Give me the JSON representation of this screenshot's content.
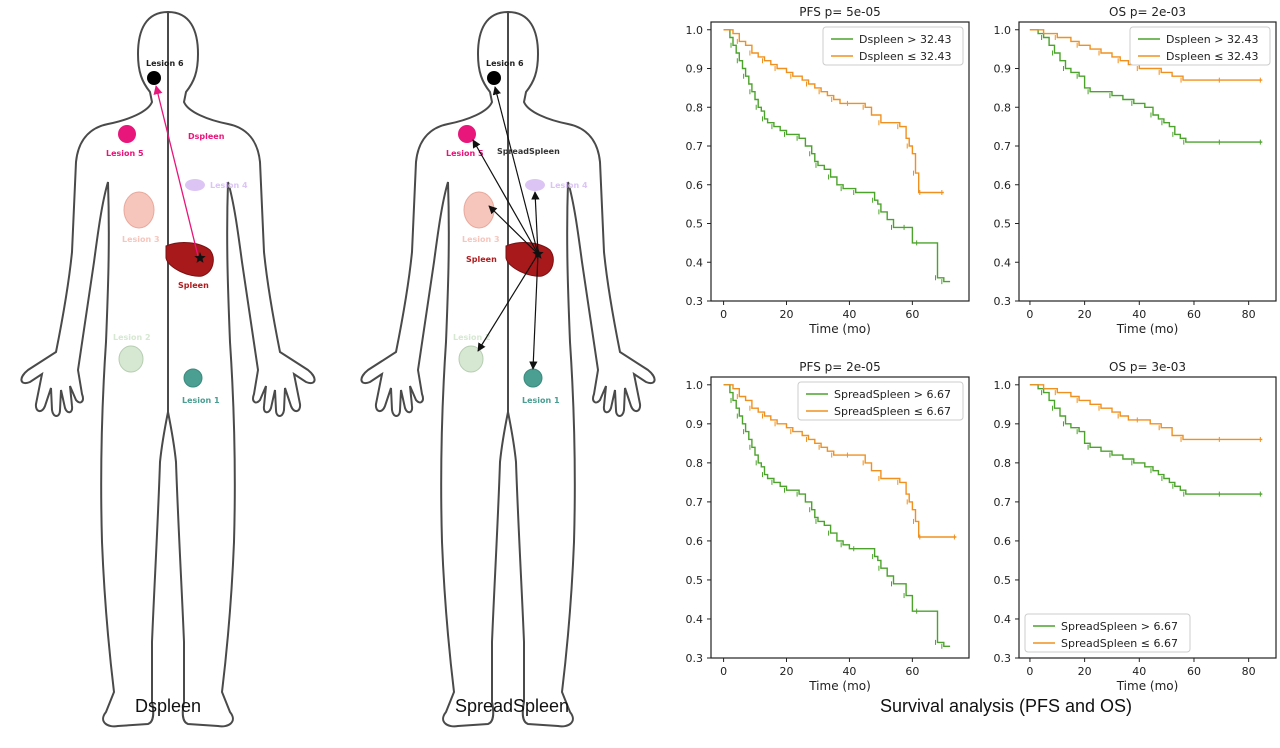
{
  "body_diagrams": [
    {
      "caption": "Dspleen",
      "spleen_label": "Spleen",
      "metric_label": "Dspleen",
      "lesions": [
        {
          "label": "Lesion 6",
          "color": "#000000"
        },
        {
          "label": "Lesion 5",
          "color": "#e8157a"
        },
        {
          "label": "Lesion 4",
          "color": "#dcc4f4"
        },
        {
          "label": "Lesion 3",
          "color": "#f6c6bd"
        },
        {
          "label": "Lesion 2",
          "color": "#d6e8d2"
        },
        {
          "label": "Lesion 1",
          "color": "#4a9e92"
        }
      ]
    },
    {
      "caption": "SpreadSpleen",
      "spleen_label": "Spleen",
      "metric_label": "SpreadSpleen",
      "lesions": [
        {
          "label": "Lesion 6",
          "color": "#000000"
        },
        {
          "label": "Lesion 5",
          "color": "#e8157a"
        },
        {
          "label": "Lesion 4",
          "color": "#dcc4f4"
        },
        {
          "label": "Lesion 3",
          "color": "#f6c6bd"
        },
        {
          "label": "Lesion 2",
          "color": "#d6e8d2"
        },
        {
          "label": "Lesion 1",
          "color": "#4a9e92"
        }
      ]
    }
  ],
  "survival_caption": "Survival analysis (PFS and OS)",
  "colors": {
    "high": "#4ca32c",
    "low": "#f0901e",
    "spleen": "#a8191b",
    "outline": "#4a4a4a"
  },
  "chart_data": [
    {
      "type": "line",
      "title": "PFS p= 5e-05",
      "xlabel": "Time (mo)",
      "ylabel": "",
      "xlim": [
        -4,
        78
      ],
      "ylim": [
        0.3,
        1.02
      ],
      "xticks": [
        0,
        20,
        40,
        60
      ],
      "yticks": [
        0.3,
        0.4,
        0.5,
        0.6,
        0.7,
        0.8,
        0.9,
        1.0
      ],
      "legend_position": "top-right",
      "series": [
        {
          "name": "Dspleen >  32.43",
          "color": "#4ca32c",
          "x": [
            0,
            2,
            3,
            4,
            5,
            6,
            7,
            8,
            9,
            10,
            11,
            12,
            13,
            14,
            16,
            18,
            20,
            23,
            24,
            26,
            28,
            29,
            30,
            32,
            34,
            36,
            38,
            40,
            42,
            45,
            48,
            49,
            50,
            52,
            54,
            56,
            58,
            60,
            62,
            64,
            68,
            69,
            70,
            72
          ],
          "y": [
            1.0,
            0.98,
            0.96,
            0.94,
            0.92,
            0.9,
            0.88,
            0.86,
            0.84,
            0.82,
            0.8,
            0.79,
            0.77,
            0.76,
            0.75,
            0.74,
            0.73,
            0.73,
            0.72,
            0.7,
            0.68,
            0.66,
            0.65,
            0.64,
            0.62,
            0.6,
            0.59,
            0.59,
            0.58,
            0.58,
            0.56,
            0.55,
            0.53,
            0.51,
            0.49,
            0.49,
            0.49,
            0.45,
            0.45,
            0.45,
            0.36,
            0.36,
            0.35,
            0.35
          ]
        },
        {
          "name": "Dspleen  ≤  32.43",
          "color": "#f0901e",
          "x": [
            0,
            3,
            5,
            7,
            9,
            11,
            13,
            15,
            17,
            20,
            22,
            25,
            27,
            29,
            31,
            33,
            35,
            37,
            40,
            42,
            45,
            47,
            50,
            53,
            56,
            58,
            59,
            60,
            61,
            62,
            63,
            65,
            70
          ],
          "y": [
            1.0,
            0.99,
            0.97,
            0.96,
            0.94,
            0.93,
            0.92,
            0.91,
            0.9,
            0.89,
            0.88,
            0.87,
            0.86,
            0.85,
            0.84,
            0.83,
            0.82,
            0.81,
            0.81,
            0.81,
            0.8,
            0.78,
            0.76,
            0.76,
            0.75,
            0.72,
            0.7,
            0.68,
            0.63,
            0.58,
            0.58,
            0.58,
            0.58
          ]
        }
      ]
    },
    {
      "type": "line",
      "title": "OS p= 2e-03",
      "xlabel": "Time (mo)",
      "ylabel": "",
      "xlim": [
        -4,
        90
      ],
      "ylim": [
        0.3,
        1.02
      ],
      "xticks": [
        0,
        20,
        40,
        60,
        80
      ],
      "yticks": [
        0.3,
        0.4,
        0.5,
        0.6,
        0.7,
        0.8,
        0.9,
        1.0
      ],
      "legend_position": "top-right",
      "series": [
        {
          "name": "Dspleen >  32.43",
          "color": "#4ca32c",
          "x": [
            0,
            3,
            5,
            7,
            9,
            11,
            13,
            15,
            18,
            20,
            22,
            26,
            30,
            34,
            38,
            42,
            45,
            47,
            49,
            51,
            53,
            55,
            57,
            60,
            70,
            80,
            85
          ],
          "y": [
            1.0,
            0.99,
            0.98,
            0.96,
            0.94,
            0.92,
            0.9,
            0.89,
            0.88,
            0.85,
            0.84,
            0.84,
            0.83,
            0.82,
            0.81,
            0.8,
            0.78,
            0.77,
            0.76,
            0.75,
            0.73,
            0.72,
            0.71,
            0.71,
            0.71,
            0.71,
            0.71
          ]
        },
        {
          "name": "Dspleen  ≤  32.43",
          "color": "#f0901e",
          "x": [
            0,
            5,
            10,
            15,
            18,
            22,
            26,
            30,
            33,
            36,
            40,
            44,
            48,
            52,
            56,
            60,
            70,
            80,
            85
          ],
          "y": [
            1.0,
            0.99,
            0.98,
            0.97,
            0.96,
            0.95,
            0.94,
            0.93,
            0.92,
            0.91,
            0.9,
            0.9,
            0.89,
            0.88,
            0.87,
            0.87,
            0.87,
            0.87,
            0.87
          ]
        }
      ]
    },
    {
      "type": "line",
      "title": "PFS p= 2e-05",
      "xlabel": "Time (mo)",
      "ylabel": "",
      "xlim": [
        -4,
        78
      ],
      "ylim": [
        0.3,
        1.02
      ],
      "xticks": [
        0,
        20,
        40,
        60
      ],
      "yticks": [
        0.3,
        0.4,
        0.5,
        0.6,
        0.7,
        0.8,
        0.9,
        1.0
      ],
      "legend_position": "top-right",
      "series": [
        {
          "name": "SpreadSpleen >  6.67",
          "color": "#4ca32c",
          "x": [
            0,
            2,
            3,
            4,
            5,
            6,
            7,
            8,
            9,
            10,
            11,
            12,
            13,
            14,
            16,
            18,
            20,
            23,
            24,
            26,
            28,
            29,
            30,
            32,
            34,
            36,
            38,
            40,
            42,
            45,
            48,
            49,
            50,
            52,
            54,
            56,
            58,
            60,
            62,
            64,
            68,
            69,
            70,
            72
          ],
          "y": [
            1.0,
            0.98,
            0.96,
            0.94,
            0.92,
            0.9,
            0.88,
            0.86,
            0.84,
            0.82,
            0.8,
            0.79,
            0.77,
            0.76,
            0.75,
            0.74,
            0.73,
            0.73,
            0.72,
            0.7,
            0.68,
            0.66,
            0.65,
            0.64,
            0.62,
            0.6,
            0.59,
            0.58,
            0.58,
            0.58,
            0.56,
            0.55,
            0.53,
            0.51,
            0.49,
            0.49,
            0.46,
            0.42,
            0.42,
            0.42,
            0.34,
            0.34,
            0.33,
            0.33
          ]
        },
        {
          "name": "SpreadSpleen  ≤  6.67",
          "color": "#f0901e",
          "x": [
            0,
            3,
            5,
            7,
            9,
            11,
            13,
            15,
            17,
            20,
            22,
            25,
            27,
            29,
            31,
            33,
            35,
            37,
            40,
            42,
            45,
            47,
            50,
            53,
            56,
            58,
            59,
            60,
            61,
            62,
            63,
            65,
            74
          ],
          "y": [
            1.0,
            0.99,
            0.97,
            0.96,
            0.94,
            0.93,
            0.92,
            0.91,
            0.9,
            0.89,
            0.88,
            0.87,
            0.86,
            0.85,
            0.84,
            0.83,
            0.82,
            0.82,
            0.82,
            0.82,
            0.8,
            0.78,
            0.76,
            0.76,
            0.75,
            0.72,
            0.7,
            0.68,
            0.65,
            0.61,
            0.61,
            0.61,
            0.61
          ]
        }
      ]
    },
    {
      "type": "line",
      "title": "OS p= 3e-03",
      "xlabel": "Time (mo)",
      "ylabel": "",
      "xlim": [
        -4,
        90
      ],
      "ylim": [
        0.3,
        1.02
      ],
      "xticks": [
        0,
        20,
        40,
        60,
        80
      ],
      "yticks": [
        0.3,
        0.4,
        0.5,
        0.6,
        0.7,
        0.8,
        0.9,
        1.0
      ],
      "legend_position": "bottom-left",
      "series": [
        {
          "name": "SpreadSpleen >  6.67",
          "color": "#4ca32c",
          "x": [
            0,
            3,
            5,
            7,
            9,
            11,
            13,
            15,
            18,
            20,
            22,
            26,
            30,
            34,
            38,
            42,
            45,
            47,
            49,
            51,
            53,
            55,
            57,
            60,
            70,
            80,
            85
          ],
          "y": [
            1.0,
            0.99,
            0.98,
            0.96,
            0.94,
            0.92,
            0.9,
            0.89,
            0.88,
            0.85,
            0.84,
            0.83,
            0.82,
            0.81,
            0.8,
            0.79,
            0.78,
            0.77,
            0.76,
            0.75,
            0.74,
            0.73,
            0.72,
            0.72,
            0.72,
            0.72,
            0.72
          ]
        },
        {
          "name": "SpreadSpleen  ≤  6.67",
          "color": "#f0901e",
          "x": [
            0,
            5,
            10,
            15,
            18,
            22,
            26,
            30,
            33,
            36,
            40,
            44,
            48,
            52,
            56,
            60,
            70,
            80,
            85
          ],
          "y": [
            1.0,
            0.99,
            0.98,
            0.97,
            0.96,
            0.95,
            0.94,
            0.93,
            0.92,
            0.91,
            0.91,
            0.9,
            0.89,
            0.87,
            0.86,
            0.86,
            0.86,
            0.86,
            0.86
          ]
        }
      ]
    }
  ]
}
